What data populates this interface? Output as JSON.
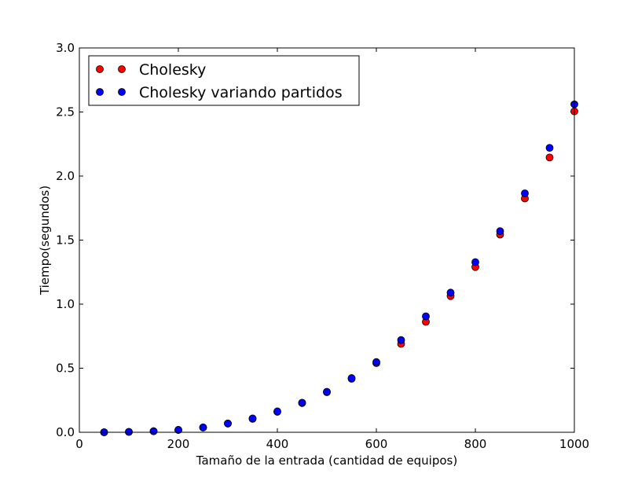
{
  "chart_data": {
    "type": "scatter",
    "title": "",
    "xlabel": "Tamaño de la entrada (cantidad de equipos)",
    "ylabel": "Tiempo(segundos)",
    "xlim": [
      0,
      1000
    ],
    "ylim": [
      0,
      3.0
    ],
    "xticks": [
      0,
      200,
      400,
      600,
      800,
      1000
    ],
    "xtick_labels": [
      "0",
      "200",
      "400",
      "600",
      "800",
      "1000"
    ],
    "yticks": [
      0,
      0.5,
      1.0,
      1.5,
      2.0,
      2.5,
      3.0
    ],
    "ytick_labels": [
      "0.0",
      "0.5",
      "1.0",
      "1.5",
      "2.0",
      "2.5",
      "3.0"
    ],
    "grid": false,
    "legend_position": "top-left",
    "x": [
      50,
      100,
      150,
      200,
      250,
      300,
      350,
      400,
      450,
      500,
      550,
      600,
      650,
      700,
      750,
      800,
      850,
      900,
      950,
      1000
    ],
    "series": [
      {
        "name": "Cholesky",
        "color": "#ff0000",
        "values": [
          0.0,
          0.003,
          0.008,
          0.018,
          0.037,
          0.068,
          0.105,
          0.16,
          0.228,
          0.313,
          0.418,
          0.54,
          0.69,
          0.862,
          1.063,
          1.29,
          1.543,
          1.825,
          2.145,
          2.505
        ]
      },
      {
        "name": "Cholesky variando partidos",
        "color": "#0000ff",
        "values": [
          0.0,
          0.003,
          0.008,
          0.019,
          0.038,
          0.069,
          0.108,
          0.163,
          0.231,
          0.316,
          0.423,
          0.548,
          0.72,
          0.905,
          1.09,
          1.328,
          1.57,
          1.865,
          2.22,
          2.56
        ]
      }
    ]
  }
}
